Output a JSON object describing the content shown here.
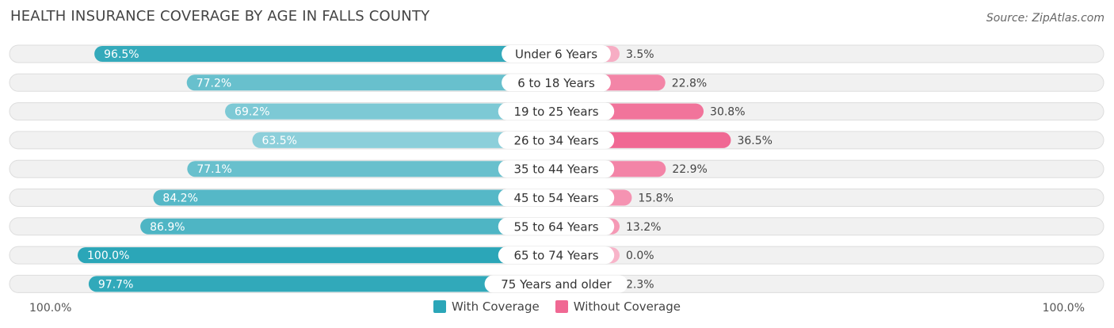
{
  "chart_data": {
    "type": "bar",
    "title": "HEALTH INSURANCE COVERAGE BY AGE IN FALLS COUNTY",
    "source": "Source: ZipAtlas.com",
    "categories": [
      "Under 6 Years",
      "6 to 18 Years",
      "19 to 25 Years",
      "26 to 34 Years",
      "35 to 44 Years",
      "45 to 54 Years",
      "55 to 64 Years",
      "65 to 74 Years",
      "75 Years and older"
    ],
    "series": [
      {
        "name": "With Coverage",
        "values": [
          96.5,
          77.2,
          69.2,
          63.5,
          77.1,
          84.2,
          86.9,
          100.0,
          97.7
        ],
        "labels": [
          "96.5%",
          "77.2%",
          "69.2%",
          "63.5%",
          "77.1%",
          "84.2%",
          "86.9%",
          "100.0%",
          "97.7%"
        ]
      },
      {
        "name": "Without Coverage",
        "values": [
          3.5,
          22.8,
          30.8,
          36.5,
          22.9,
          15.8,
          13.2,
          0.0,
          2.3
        ],
        "labels": [
          "3.5%",
          "22.8%",
          "30.8%",
          "36.5%",
          "22.9%",
          "15.8%",
          "13.2%",
          "0.0%",
          "2.3%"
        ]
      }
    ],
    "xlim": [
      -100,
      100
    ],
    "axis_labels": {
      "left": "100.0%",
      "right": "100.0%"
    },
    "legend_position": "bottom-center",
    "colors": {
      "with_strong": "#2ba6b8",
      "with_light": "#8ccfda",
      "without_strong": "#f06893",
      "without_light": "#f8b4c9",
      "track": "#f1f1f1",
      "track_border": "#dddddd"
    }
  }
}
